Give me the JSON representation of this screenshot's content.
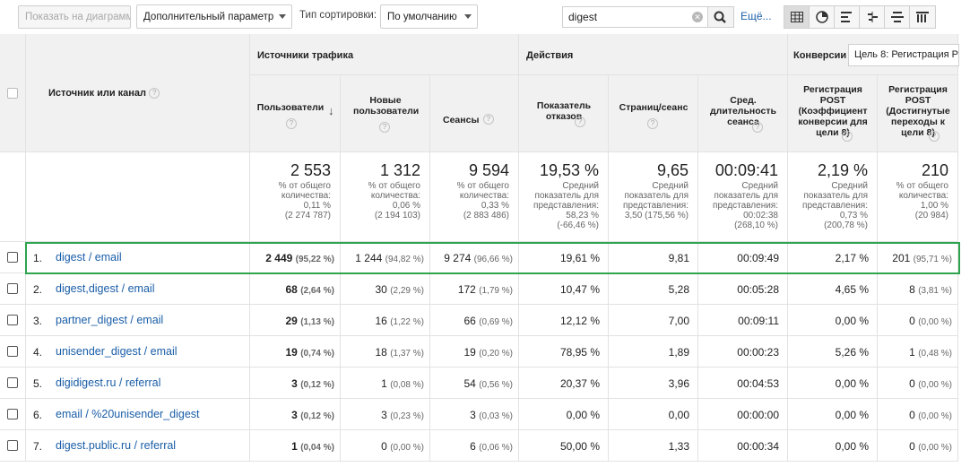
{
  "toolbar": {
    "plot_button": "Показать на диаграмме",
    "secondary_dim": "Дополнительный параметр",
    "sort_label": "Тип сортировки:",
    "sort_value": "По умолчанию",
    "search_value": "digest",
    "more_link": "Ещё..."
  },
  "groups": {
    "traffic": "Источники трафика",
    "actions": "Действия",
    "conversions": "Конверсии",
    "goal_select": "Цель 8: Регистрация Р"
  },
  "columns": {
    "source": "Источник или канал",
    "users": "Пользователи",
    "new_users": "Новые пользователи",
    "sessions": "Сеансы",
    "bounce": "Показатель отказов",
    "pages": "Страниц/сеанс",
    "duration": "Сред. длительность сеанса",
    "conv_rate": "Регистрация POST (Коэффициент конверсии для цели 8)",
    "completions": "Регистрация POST (Достигнутые переходы к цели 8)"
  },
  "totals": {
    "users": {
      "big": "2 553",
      "sub1": "% от общего",
      "sub2": "количества:",
      "sub3": "0,11 %",
      "sub4": "(2 274 787)"
    },
    "new_users": {
      "big": "1 312",
      "sub1": "% от общего",
      "sub2": "количества:",
      "sub3": "0,06 %",
      "sub4": "(2 194 103)"
    },
    "sessions": {
      "big": "9 594",
      "sub1": "% от общего",
      "sub2": "количества:",
      "sub3": "0,33 %",
      "sub4": "(2 883 486)"
    },
    "bounce": {
      "big": "19,53 %",
      "sub1": "Средний",
      "sub2": "показатель для",
      "sub3": "представления:",
      "sub4": "58,23 %",
      "sub5": "(-66,46 %)"
    },
    "pages": {
      "big": "9,65",
      "sub1": "Средний",
      "sub2": "показатель для",
      "sub3": "представления:",
      "sub4": "3,50 (175,56 %)"
    },
    "duration": {
      "big": "00:09:41",
      "sub1": "Средний",
      "sub2": "показатель для",
      "sub3": "представления:",
      "sub4": "00:02:38",
      "sub5": "(268,10 %)"
    },
    "conv_rate": {
      "big": "2,19 %",
      "sub1": "Средний",
      "sub2": "показатель для",
      "sub3": "представления:",
      "sub4": "0,73 %",
      "sub5": "(200,78 %)"
    },
    "completions": {
      "big": "210",
      "sub1": "% от общего",
      "sub2": "количества:",
      "sub3": "1,00 %",
      "sub4": "(20 984)"
    }
  },
  "rows": [
    {
      "idx": "1.",
      "source": "digest / email",
      "users": "2 449",
      "users_pct": "(95,22 %)",
      "new": "1 244",
      "new_pct": "(94,82 %)",
      "sess": "9 274",
      "sess_pct": "(96,66 %)",
      "bounce": "19,61 %",
      "pages": "9,81",
      "dur": "00:09:49",
      "conv": "2,17 %",
      "comp": "201",
      "comp_pct": "(95,71 %)"
    },
    {
      "idx": "2.",
      "source": "digest,digest / email",
      "users": "68",
      "users_pct": "(2,64 %)",
      "new": "30",
      "new_pct": "(2,29 %)",
      "sess": "172",
      "sess_pct": "(1,79 %)",
      "bounce": "10,47 %",
      "pages": "5,28",
      "dur": "00:05:28",
      "conv": "4,65 %",
      "comp": "8",
      "comp_pct": "(3,81 %)"
    },
    {
      "idx": "3.",
      "source": "partner_digest / email",
      "users": "29",
      "users_pct": "(1,13 %)",
      "new": "16",
      "new_pct": "(1,22 %)",
      "sess": "66",
      "sess_pct": "(0,69 %)",
      "bounce": "12,12 %",
      "pages": "7,00",
      "dur": "00:09:11",
      "conv": "0,00 %",
      "comp": "0",
      "comp_pct": "(0,00 %)"
    },
    {
      "idx": "4.",
      "source": "unisender_digest / email",
      "users": "19",
      "users_pct": "(0,74 %)",
      "new": "18",
      "new_pct": "(1,37 %)",
      "sess": "19",
      "sess_pct": "(0,20 %)",
      "bounce": "78,95 %",
      "pages": "1,89",
      "dur": "00:00:23",
      "conv": "5,26 %",
      "comp": "1",
      "comp_pct": "(0,48 %)"
    },
    {
      "idx": "5.",
      "source": "digidigest.ru / referral",
      "users": "3",
      "users_pct": "(0,12 %)",
      "new": "1",
      "new_pct": "(0,08 %)",
      "sess": "54",
      "sess_pct": "(0,56 %)",
      "bounce": "20,37 %",
      "pages": "3,96",
      "dur": "00:04:53",
      "conv": "0,00 %",
      "comp": "0",
      "comp_pct": "(0,00 %)"
    },
    {
      "idx": "6.",
      "source": "email / %20unisender_digest",
      "users": "3",
      "users_pct": "(0,12 %)",
      "new": "3",
      "new_pct": "(0,23 %)",
      "sess": "3",
      "sess_pct": "(0,03 %)",
      "bounce": "0,00 %",
      "pages": "0,00",
      "dur": "00:00:00",
      "conv": "0,00 %",
      "comp": "0",
      "comp_pct": "(0,00 %)"
    },
    {
      "idx": "7.",
      "source": "digest.public.ru / referral",
      "users": "1",
      "users_pct": "(0,04 %)",
      "new": "0",
      "new_pct": "(0,00 %)",
      "sess": "6",
      "sess_pct": "(0,06 %)",
      "bounce": "50,00 %",
      "pages": "1,33",
      "dur": "00:00:34",
      "conv": "0,00 %",
      "comp": "0",
      "comp_pct": "(0,00 %)"
    }
  ],
  "colors": {
    "link": "#1a5ea8",
    "highlight": "#2ea44f"
  }
}
